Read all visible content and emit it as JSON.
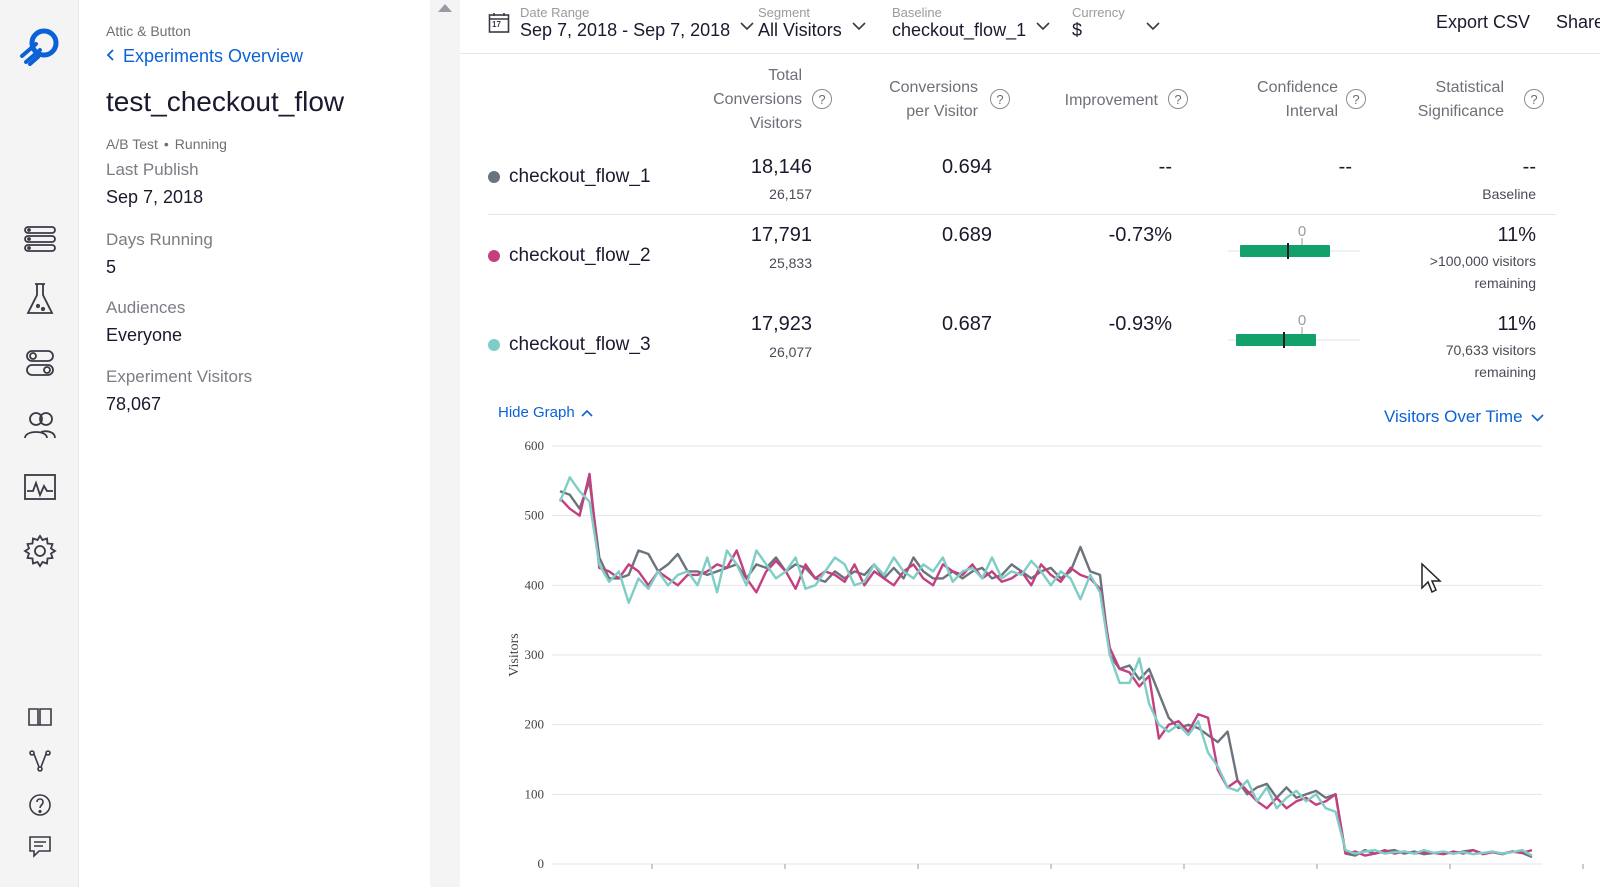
{
  "breadcrumb": "Attic & Button",
  "back_link": "Experiments Overview",
  "experiment": {
    "name": "test_checkout_flow",
    "type": "A/B Test",
    "status": "Running",
    "fields": [
      {
        "label": "Last Publish",
        "value": "Sep 7, 2018"
      },
      {
        "label": "Days Running",
        "value": "5"
      },
      {
        "label": "Audiences",
        "value": "Everyone"
      },
      {
        "label": "Experiment Visitors",
        "value": "78,067"
      }
    ]
  },
  "filters": {
    "date_range": {
      "label": "Date Range",
      "value": "Sep 7, 2018 - Sep 7, 2018",
      "calendar_day": "17"
    },
    "segment": {
      "label": "Segment",
      "value": "All Visitors"
    },
    "baseline": {
      "label": "Baseline",
      "value": "checkout_flow_1"
    },
    "currency": {
      "label": "Currency",
      "value": "$"
    }
  },
  "actions": {
    "export": "Export CSV",
    "share": "Share"
  },
  "table": {
    "headers": {
      "total": [
        "Total",
        "Conversions",
        "Visitors"
      ],
      "cpv": [
        "Conversions",
        "per Visitor"
      ],
      "improvement": "Improvement",
      "ci": [
        "Confidence",
        "Interval"
      ],
      "sig": [
        "Statistical",
        "Significance"
      ],
      "help": "?"
    },
    "rows": [
      {
        "name": "checkout_flow_1",
        "color": "#6b747c",
        "conversions": "18,146",
        "visitors": "26,157",
        "cpv": "0.694",
        "improvement": "--",
        "ci": "--",
        "sig": "--",
        "sig_note_1": "Baseline",
        "sig_note_2": ""
      },
      {
        "name": "checkout_flow_2",
        "color": "#c43f7f",
        "conversions": "17,791",
        "visitors": "25,833",
        "cpv": "0.689",
        "improvement": "-0.73%",
        "ci_zero": "0",
        "sig": "11%",
        "sig_note_1": ">100,000 visitors",
        "sig_note_2": "remaining"
      },
      {
        "name": "checkout_flow_3",
        "color": "#7ecdc6",
        "conversions": "17,923",
        "visitors": "26,077",
        "cpv": "0.687",
        "improvement": "-0.93%",
        "ci_zero": "0",
        "sig": "11%",
        "sig_note_1": "70,633 visitors",
        "sig_note_2": "remaining"
      }
    ]
  },
  "graph": {
    "hide_label": "Hide Graph",
    "metric_select": "Visitors Over Time"
  },
  "colors": {
    "accent": "#0b62d6",
    "ci_bar": "#12a06b"
  },
  "chart_data": {
    "type": "line",
    "title": "",
    "xlabel": "",
    "ylabel": "Visitors",
    "ylim": [
      0,
      600
    ],
    "yticks": [
      0,
      100,
      200,
      300,
      400,
      500,
      600
    ],
    "grid": true,
    "series": [
      {
        "name": "checkout_flow_1",
        "color": "#6b747c",
        "values": [
          535,
          530,
          510,
          550,
          440,
          410,
          410,
          415,
          450,
          445,
          420,
          430,
          445,
          420,
          420,
          415,
          420,
          425,
          430,
          410,
          430,
          425,
          440,
          420,
          430,
          425,
          410,
          405,
          420,
          410,
          420,
          415,
          430,
          410,
          425,
          410,
          440,
          420,
          410,
          410,
          420,
          410,
          420,
          425,
          410,
          415,
          430,
          420,
          410,
          420,
          425,
          410,
          420,
          455,
          420,
          415,
          300,
          280,
          285,
          265,
          280,
          245,
          210,
          195,
          200,
          195,
          185,
          175,
          190,
          120,
          100,
          110,
          115,
          95,
          110,
          95,
          100,
          105,
          95,
          100,
          15,
          12,
          20,
          15,
          18,
          20,
          15,
          18,
          14,
          16,
          17,
          15,
          18,
          20,
          15,
          17,
          14,
          18,
          16,
          10
        ]
      },
      {
        "name": "checkout_flow_2",
        "color": "#c43f7f",
        "values": [
          525,
          510,
          500,
          560,
          425,
          420,
          410,
          430,
          420,
          400,
          420,
          410,
          400,
          415,
          415,
          420,
          430,
          425,
          450,
          410,
          390,
          420,
          435,
          420,
          395,
          430,
          410,
          420,
          415,
          405,
          430,
          400,
          420,
          410,
          400,
          420,
          430,
          410,
          400,
          430,
          420,
          415,
          430,
          410,
          420,
          405,
          410,
          420,
          400,
          430,
          415,
          405,
          425,
          415,
          410,
          395,
          310,
          280,
          275,
          255,
          270,
          180,
          200,
          205,
          190,
          215,
          210,
          135,
          110,
          120,
          105,
          90,
          80,
          95,
          80,
          90,
          95,
          85,
          90,
          100,
          15,
          18,
          12,
          15,
          20,
          15,
          18,
          15,
          17,
          16,
          14,
          18,
          15,
          20,
          14,
          17,
          15,
          18,
          16,
          20
        ]
      },
      {
        "name": "checkout_flow_3",
        "color": "#7ecdc6",
        "values": [
          520,
          555,
          535,
          520,
          430,
          405,
          420,
          375,
          410,
          395,
          420,
          400,
          415,
          420,
          400,
          440,
          390,
          450,
          430,
          400,
          450,
          430,
          410,
          420,
          440,
          395,
          400,
          420,
          440,
          430,
          400,
          405,
          430,
          415,
          440,
          420,
          410,
          430,
          420,
          440,
          405,
          420,
          425,
          410,
          440,
          410,
          420,
          415,
          435,
          420,
          400,
          420,
          410,
          380,
          415,
          390,
          300,
          260,
          260,
          295,
          230,
          200,
          190,
          200,
          185,
          205,
          160,
          140,
          110,
          105,
          120,
          90,
          110,
          80,
          95,
          105,
          90,
          100,
          80,
          75,
          20,
          15,
          18,
          20,
          15,
          17,
          18,
          15,
          20,
          16,
          18,
          15,
          17,
          14,
          16,
          18,
          15,
          17,
          20,
          12
        ]
      }
    ]
  }
}
